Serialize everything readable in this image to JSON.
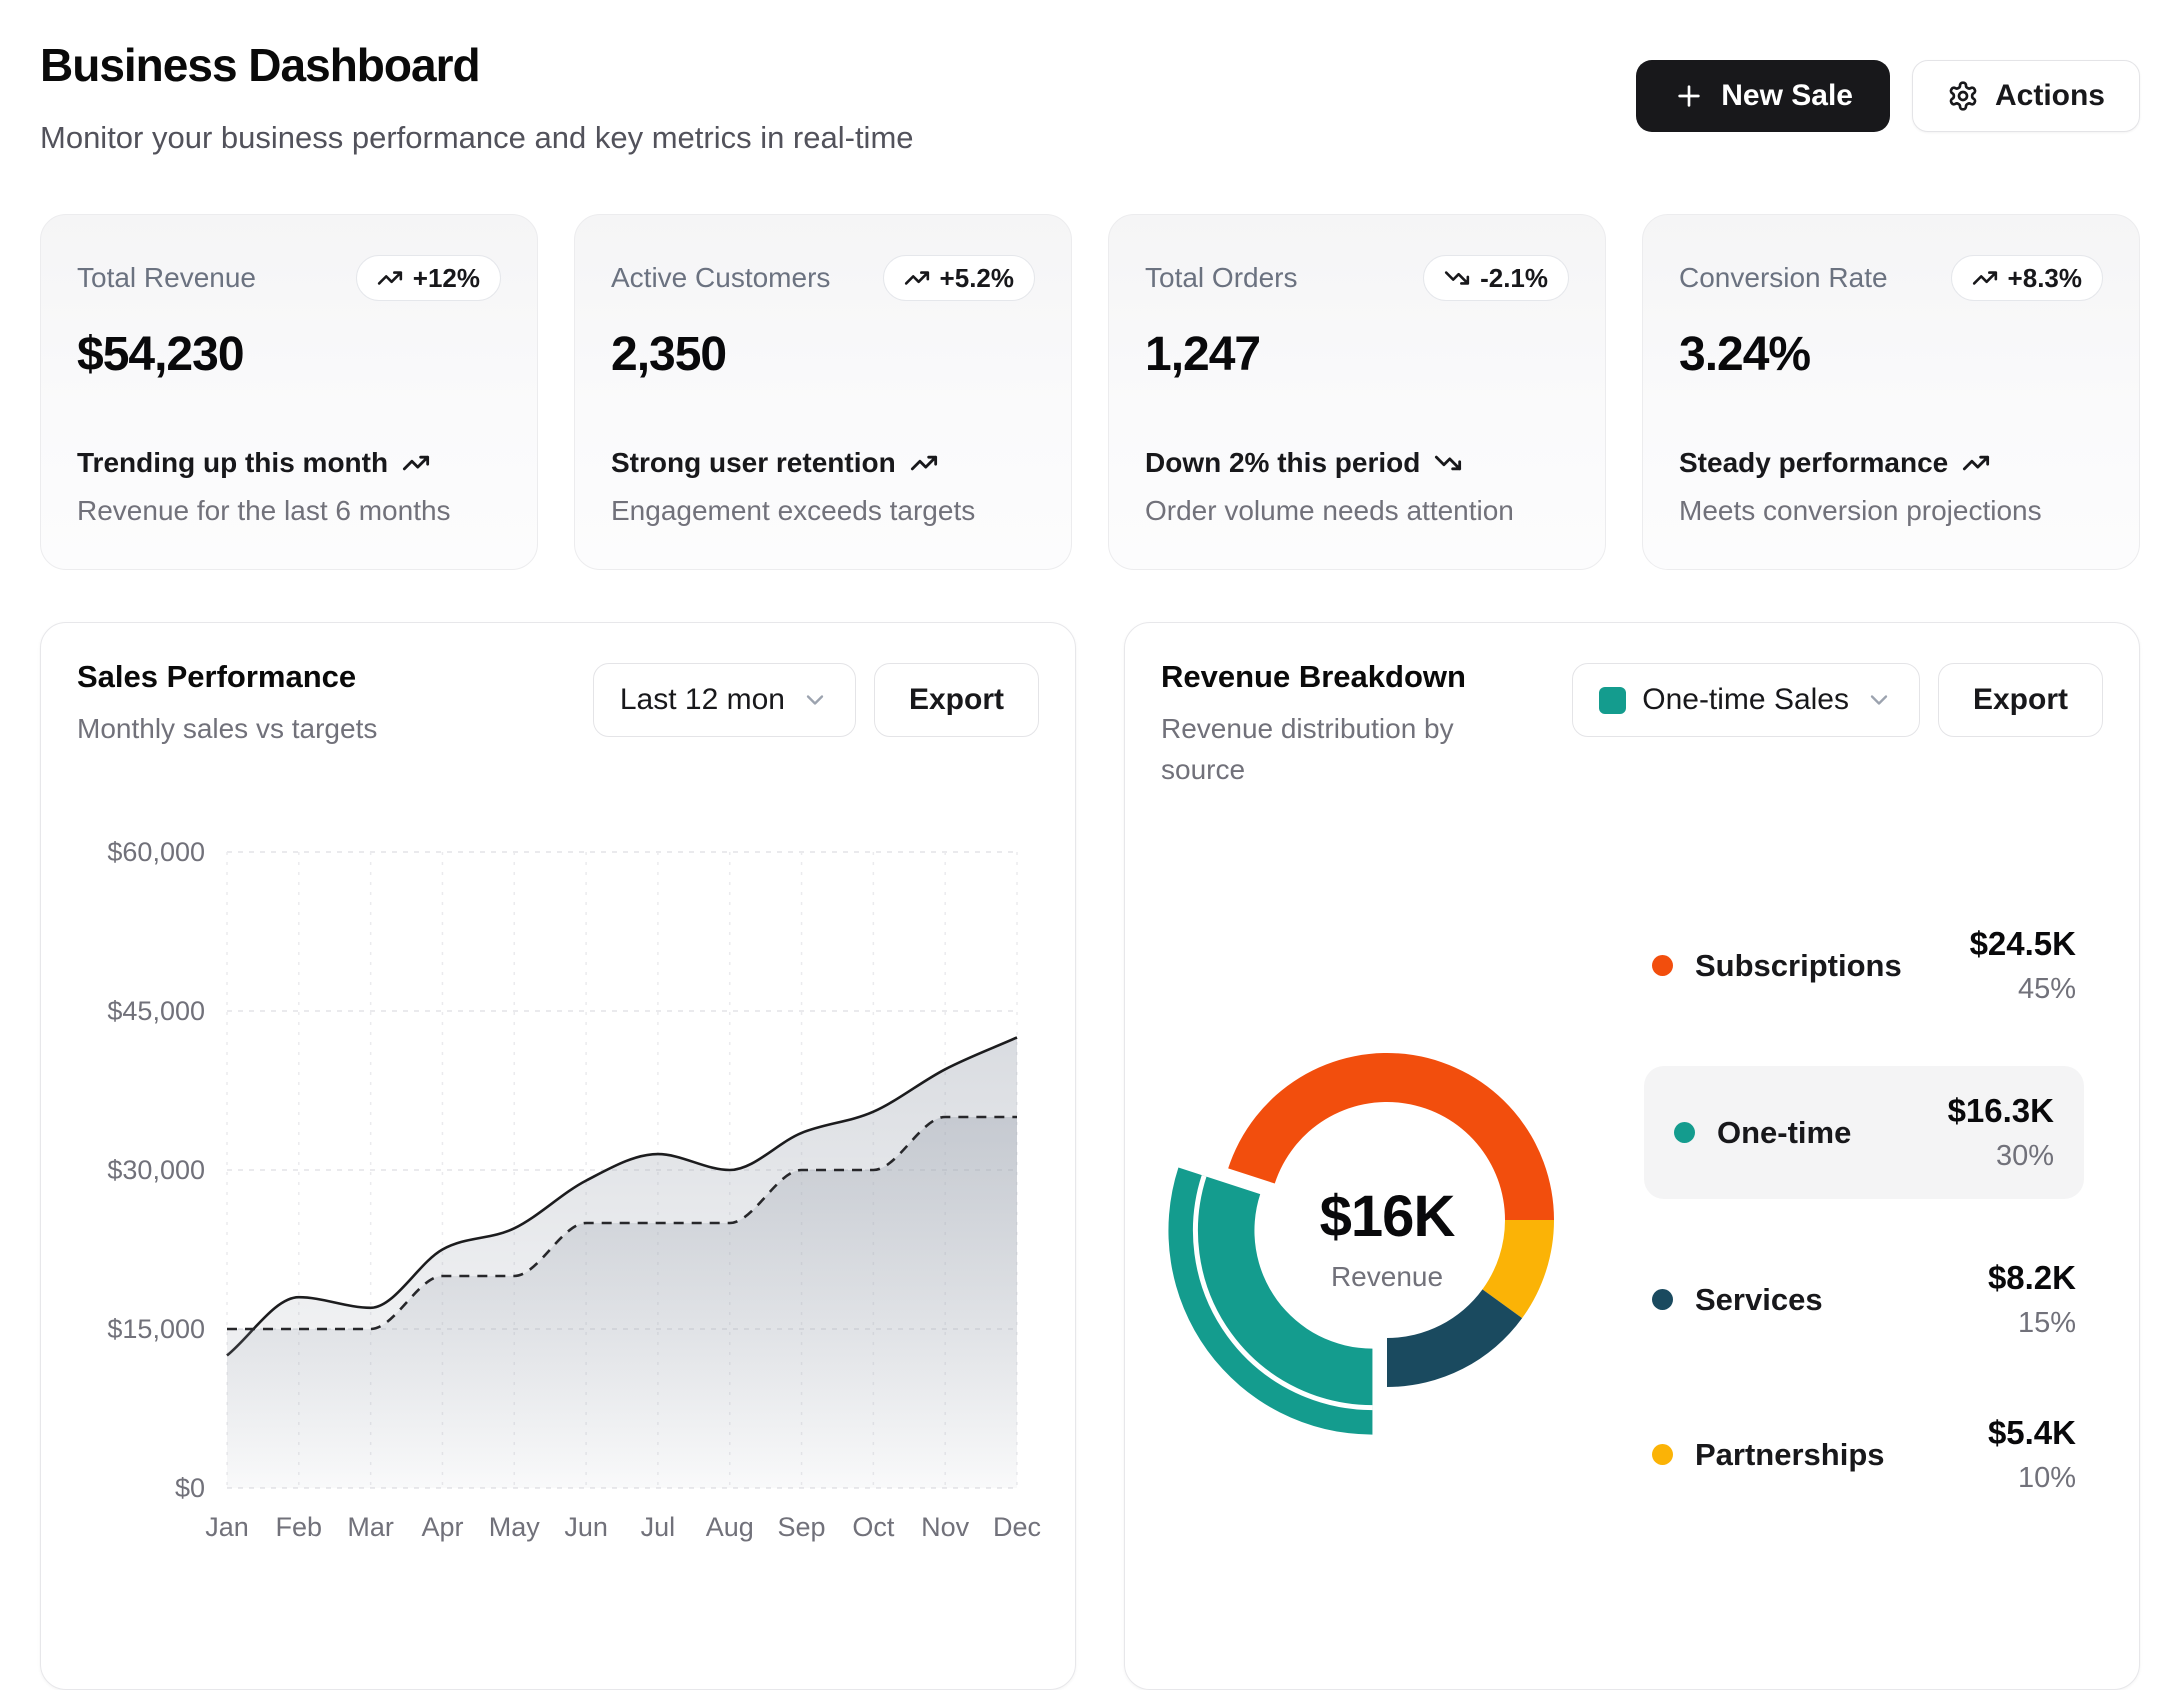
{
  "header": {
    "title": "Business Dashboard",
    "subtitle": "Monitor your business performance and key metrics in real-time",
    "new_sale_label": "New Sale",
    "actions_label": "Actions"
  },
  "stats": [
    {
      "label": "Total Revenue",
      "badge": "+12%",
      "trend": "up",
      "value": "$54,230",
      "footer_title": "Trending up this month",
      "footer_sub": "Revenue for the last 6 months"
    },
    {
      "label": "Active Customers",
      "badge": "+5.2%",
      "trend": "up",
      "value": "2,350",
      "footer_title": "Strong user retention",
      "footer_sub": "Engagement exceeds targets"
    },
    {
      "label": "Total Orders",
      "badge": "-2.1%",
      "trend": "down",
      "value": "1,247",
      "footer_title": "Down 2% this period",
      "footer_sub": "Order volume needs attention"
    },
    {
      "label": "Conversion Rate",
      "badge": "+8.3%",
      "trend": "up",
      "value": "3.24%",
      "footer_title": "Steady performance",
      "footer_sub": "Meets conversion projections"
    }
  ],
  "sales_card": {
    "title": "Sales Performance",
    "subtitle": "Monthly sales vs targets",
    "range_label": "Last 12 mon",
    "export_label": "Export"
  },
  "revenue_card": {
    "title": "Revenue Breakdown",
    "subtitle": "Revenue distribution by source",
    "selector_label": "One-time Sales",
    "export_label": "Export",
    "center_value": "$16K",
    "center_label": "Revenue",
    "legend": [
      {
        "name": "Subscriptions",
        "value": "$24.5K",
        "pct": "45%"
      },
      {
        "name": "One-time",
        "value": "$16.3K",
        "pct": "30%"
      },
      {
        "name": "Services",
        "value": "$8.2K",
        "pct": "15%"
      },
      {
        "name": "Partnerships",
        "value": "$5.4K",
        "pct": "10%"
      }
    ]
  },
  "chart_data": [
    {
      "type": "line",
      "title": "Sales Performance",
      "x": [
        "Jan",
        "Feb",
        "Mar",
        "Apr",
        "May",
        "Jun",
        "Jul",
        "Aug",
        "Sep",
        "Oct",
        "Nov",
        "Dec"
      ],
      "ylim": [
        0,
        60000
      ],
      "y_ticks": [
        0,
        15000,
        30000,
        45000,
        60000
      ],
      "y_tick_labels": [
        "$0",
        "$15,000",
        "$30,000",
        "$45,000",
        "$60,000"
      ],
      "grid": true,
      "legend_position": "none",
      "series": [
        {
          "name": "Sales",
          "style": "solid-area",
          "color": "#1c1c1e",
          "values": [
            12500,
            18000,
            17000,
            22500,
            24500,
            29000,
            31500,
            30000,
            33500,
            35500,
            39500,
            42500
          ]
        },
        {
          "name": "Target",
          "style": "dashed",
          "color": "#27272a",
          "values": [
            15000,
            15000,
            15000,
            20000,
            20000,
            25000,
            25000,
            25000,
            30000,
            30000,
            35000,
            35000
          ]
        }
      ]
    },
    {
      "type": "donut",
      "center_value": "$16K",
      "center_label": "Revenue",
      "start_angle_deg": -72,
      "slices": [
        {
          "name": "Subscriptions",
          "value_label": "$24.5K",
          "pct": 45,
          "color": "#F24E0D"
        },
        {
          "name": "Partnerships",
          "value_label": "$5.4K",
          "pct": 10,
          "color": "#FBB306"
        },
        {
          "name": "Services",
          "value_label": "$8.2K",
          "pct": 15,
          "color": "#1A4A5F"
        },
        {
          "name": "One-time",
          "value_label": "$16.3K",
          "pct": 30,
          "color": "#149C8E",
          "selected": true,
          "exploded": true
        }
      ]
    }
  ]
}
